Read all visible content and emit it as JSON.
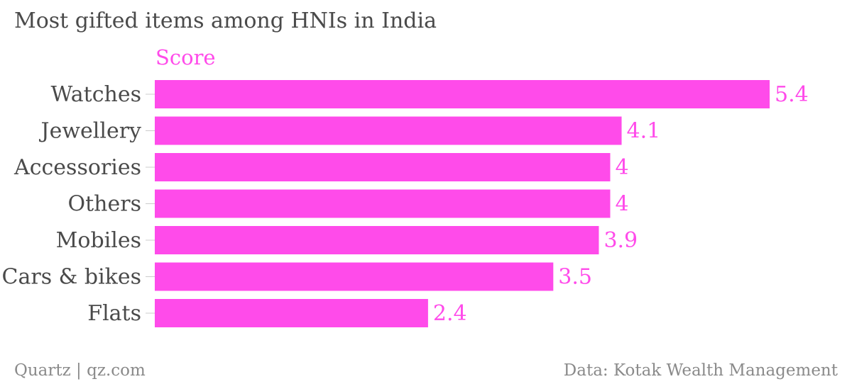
{
  "chart_data": {
    "type": "bar",
    "orientation": "horizontal",
    "title": "Most gifted items among HNIs in India",
    "categories": [
      "Watches",
      "Jewellery",
      "Accessories",
      "Others",
      "Mobiles",
      "Cars & bikes",
      "Flats"
    ],
    "series": [
      {
        "name": "Score",
        "values": [
          5.4,
          4.1,
          4,
          4,
          3.9,
          3.5,
          2.4
        ],
        "color": "#ff4bea"
      }
    ],
    "xlim": [
      0,
      5.4
    ],
    "grid": false,
    "data_labels": true
  },
  "footer": {
    "source_left": "Quartz | qz.com",
    "source_right": "Data: Kotak Wealth Management"
  },
  "colors": {
    "bar": "#ff4bea",
    "text": "#4a4a4a",
    "footer": "#8a8a8a",
    "axis": "#cccccc"
  }
}
